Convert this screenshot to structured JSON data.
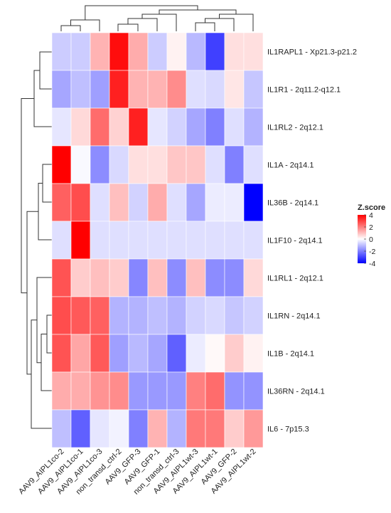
{
  "chart_data": {
    "type": "heatmap",
    "rows": [
      "IL1RAPL1 - Xp21.3-p21.2",
      "IL1R1 - 2q11.2-q12.1",
      "IL1RL2 - 2q12.1",
      "IL1A - 2q14.1",
      "IL36B - 2q14.1",
      "IL1F10 - 2q14.1",
      "IL1RL1 - 2q12.1",
      "IL1RN - 2q14.1",
      "IL1B - 2q14.1",
      "IL36RN - 2q14.1",
      "IL6 - 7p15.3"
    ],
    "columns": [
      "AAV9_AIPL1co-2",
      "AAV9_AIPL1co-1",
      "AAV9_AIPL1co-3",
      "non_transd_ctrl-2",
      "AAV9_GFP-3",
      "AAV9_GFP-1",
      "non_transd_ctrl-3",
      "AAV9_AIPL1wt-3",
      "AAV9_AIPL1wt-1",
      "AAV9_GFP-2",
      "AAV9_AIPL1wt-2"
    ],
    "values": [
      [
        -0.8,
        -0.8,
        1.2,
        3.8,
        1.3,
        -0.8,
        0.2,
        -1.1,
        -3.0,
        0.5,
        0.5
      ],
      [
        -1.4,
        -1.0,
        -1.5,
        3.5,
        1.2,
        1.2,
        1.8,
        -0.5,
        -0.6,
        0.4,
        -0.9
      ],
      [
        -0.4,
        0.6,
        2.3,
        0.7,
        3.5,
        -0.4,
        -0.7,
        -1.4,
        -2.0,
        -0.5,
        -1.2
      ],
      [
        4.0,
        -0.1,
        -1.8,
        -0.6,
        0.5,
        0.5,
        0.9,
        0.9,
        -0.5,
        -2.0,
        -0.5
      ],
      [
        2.5,
        2.8,
        -0.5,
        1.0,
        -0.7,
        1.3,
        -0.5,
        -1.4,
        -0.3,
        -0.3,
        -4.0
      ],
      [
        -0.5,
        4.0,
        -0.5,
        -0.5,
        -0.5,
        -0.5,
        -0.5,
        -0.5,
        -0.5,
        -0.5,
        -0.5
      ],
      [
        2.7,
        0.8,
        1.0,
        0.8,
        -1.9,
        1.0,
        -1.8,
        1.0,
        -1.8,
        -1.8,
        0.6
      ],
      [
        2.8,
        2.6,
        2.5,
        -1.2,
        -1.2,
        -1.0,
        -1.2,
        -0.7,
        -0.6,
        -0.9,
        -0.7
      ],
      [
        2.7,
        1.4,
        2.6,
        -1.5,
        -1.1,
        -1.4,
        -2.5,
        -0.3,
        0.1,
        0.8,
        0.2
      ],
      [
        1.3,
        1.3,
        1.7,
        1.8,
        -1.6,
        -1.6,
        -1.6,
        2.0,
        2.3,
        -1.7,
        -1.7
      ],
      [
        -1.0,
        -2.5,
        -0.4,
        -0.2,
        -2.0,
        1.2,
        -1.2,
        2.1,
        2.1,
        0.8,
        1.6
      ]
    ],
    "legend": {
      "title": "Z.score",
      "ticks": [
        4,
        2,
        0,
        -2,
        -4
      ],
      "range": [
        -4,
        4
      ]
    },
    "colors": {
      "low": "#0000ff",
      "mid": "#ffffff",
      "high": "#ff0000"
    },
    "row_dendrogram": "left",
    "column_dendrogram": "top"
  }
}
